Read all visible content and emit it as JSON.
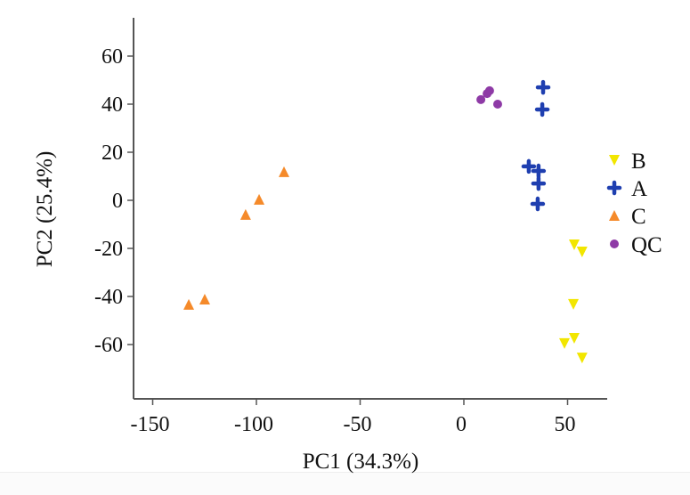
{
  "chart_data": {
    "type": "scatter",
    "title": "",
    "xlabel": "PC1 (34.3%)",
    "ylabel": "PC2 (25.4%)",
    "xlim": [
      -162,
      70
    ],
    "ylim": [
      -80,
      75
    ],
    "xticks": [
      -150,
      -100,
      -50,
      0,
      50
    ],
    "yticks": [
      60,
      40,
      20,
      0,
      -20,
      -40,
      -60
    ],
    "grid": false,
    "legend_position": "right",
    "series": [
      {
        "name": "B",
        "marker": "triangle-down",
        "color": "#f2e600",
        "points": [
          [
            53.2,
            -18.5
          ],
          [
            57.0,
            -21.5
          ],
          [
            52.8,
            -43.3
          ],
          [
            53.2,
            -57.4
          ],
          [
            48.5,
            -59.6
          ],
          [
            57.0,
            -65.6
          ]
        ]
      },
      {
        "name": "A",
        "marker": "plus",
        "color": "#1f3fb0",
        "points": [
          [
            38.2,
            47.0
          ],
          [
            37.8,
            37.8
          ],
          [
            31.3,
            14.1
          ],
          [
            36.0,
            12.2
          ],
          [
            36.0,
            7.0
          ],
          [
            35.6,
            -1.5
          ]
        ]
      },
      {
        "name": "C",
        "marker": "triangle-up",
        "color": "#f58a2a",
        "points": [
          [
            -132.6,
            -43.3
          ],
          [
            -124.9,
            -41.1
          ],
          [
            -105.2,
            -5.9
          ],
          [
            -98.7,
            0.4
          ],
          [
            -86.7,
            11.9
          ]
        ]
      },
      {
        "name": "QC",
        "marker": "circle",
        "color": "#8e3aa6",
        "points": [
          [
            8.2,
            41.9
          ],
          [
            11.2,
            44.4
          ],
          [
            12.4,
            45.6
          ],
          [
            16.3,
            40.0
          ]
        ]
      }
    ]
  }
}
